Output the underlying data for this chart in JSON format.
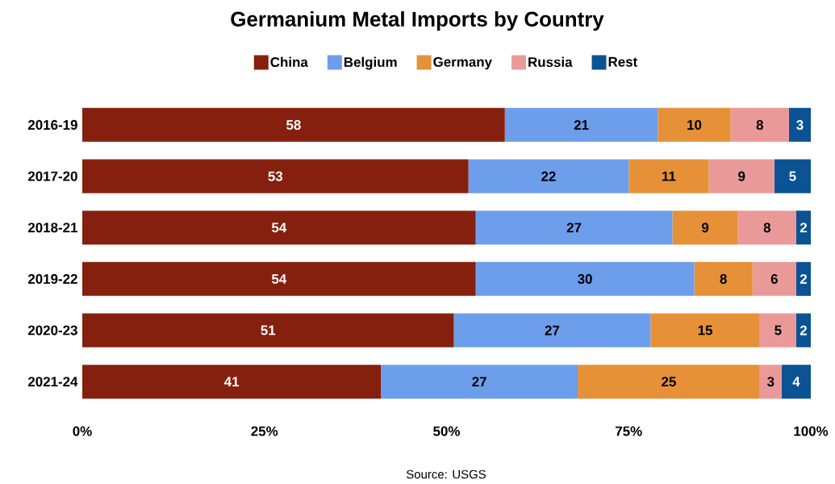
{
  "chart_data": {
    "type": "bar",
    "orientation": "horizontal",
    "stacked": true,
    "title": "Germanium Metal Imports by Country",
    "categories": [
      "2016-19",
      "2017-20",
      "2018-21",
      "2019-22",
      "2020-23",
      "2021-24"
    ],
    "series": [
      {
        "name": "China",
        "color": "#86200e",
        "values": [
          58,
          53,
          54,
          54,
          51,
          41
        ]
      },
      {
        "name": "Belgium",
        "color": "#6d9eeb",
        "values": [
          21,
          22,
          27,
          30,
          27,
          27
        ]
      },
      {
        "name": "Germany",
        "color": "#e69138",
        "values": [
          10,
          11,
          9,
          8,
          15,
          25
        ]
      },
      {
        "name": "Russia",
        "color": "#ea9999",
        "values": [
          8,
          9,
          8,
          6,
          5,
          3
        ]
      },
      {
        "name": "Rest",
        "color": "#0b5394",
        "values": [
          3,
          5,
          2,
          2,
          2,
          4
        ]
      }
    ],
    "xlim": [
      0,
      100
    ],
    "xticks": [
      {
        "value": 0,
        "label": "0%"
      },
      {
        "value": 25,
        "label": "25%"
      },
      {
        "value": 50,
        "label": "50%"
      },
      {
        "value": 75,
        "label": "75%"
      },
      {
        "value": 100,
        "label": "100%"
      }
    ],
    "data_labels": true,
    "legend": "top",
    "grid": false,
    "annotations": [
      "Source: USGS"
    ]
  }
}
